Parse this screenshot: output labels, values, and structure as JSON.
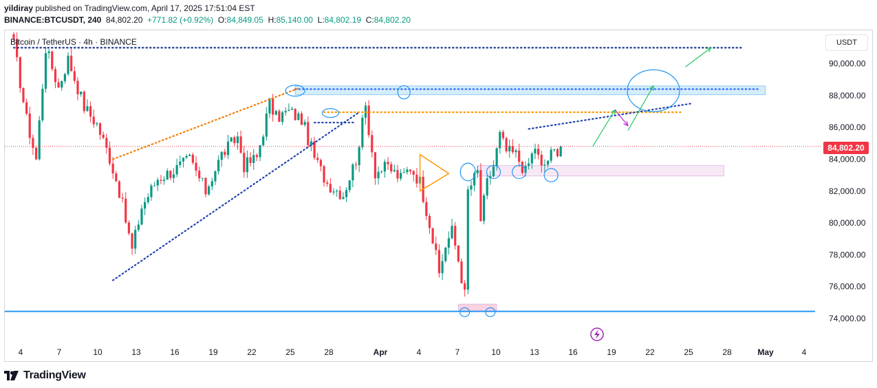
{
  "header": {
    "author": "yildiray",
    "published": "published on TradingView.com, April 17, 2025 17:51:04 EST",
    "symbol": "BINANCE:BTCUSDT, 240",
    "last": "84,802.20",
    "change": "+771.82 (+0.92%)",
    "o_label": "O:",
    "o_value": "84,849.05",
    "h_label": "H:",
    "h_value": "85,140.00",
    "l_label": "L:",
    "l_value": "84,802.19",
    "c_label": "C:",
    "c_value": "84,802.20"
  },
  "legend": "Bitcoin / TetherUS · 4h · BINANCE",
  "unit_button": "USDT",
  "price_label": "84,802.20",
  "footer": {
    "brand": "TradingView"
  },
  "colors": {
    "up": "#089981",
    "down": "#f23645",
    "accent": "#2962ff"
  },
  "chart_data": {
    "type": "candlestick",
    "title": "Bitcoin / TetherUS · 4h · BINANCE",
    "timeframe": "4h",
    "x_ticks": [
      "4",
      "7",
      "10",
      "13",
      "16",
      "19",
      "22",
      "25",
      "28",
      "Apr",
      "4",
      "7",
      "10",
      "13",
      "16",
      "19",
      "22",
      "25",
      "28",
      "May",
      "4"
    ],
    "y_ticks": [
      "74,000.00",
      "76,000.00",
      "78,000.00",
      "80,000.00",
      "82,000.00",
      "84,000.00",
      "86,000.00",
      "88,000.00",
      "90,000.00"
    ],
    "ylim": [
      73000,
      92000
    ],
    "last_price": 84802.2,
    "close_path": [
      {
        "t": 0,
        "p": 91200
      },
      {
        "t": 4,
        "p": 86500
      },
      {
        "t": 7,
        "p": 84000
      },
      {
        "t": 10,
        "p": 91000
      },
      {
        "t": 14,
        "p": 88500
      },
      {
        "t": 17,
        "p": 90300
      },
      {
        "t": 22,
        "p": 87300
      },
      {
        "t": 26,
        "p": 86200
      },
      {
        "t": 30,
        "p": 84100
      },
      {
        "t": 33,
        "p": 82000
      },
      {
        "t": 37,
        "p": 78300
      },
      {
        "t": 40,
        "p": 81000
      },
      {
        "t": 45,
        "p": 82800
      },
      {
        "t": 50,
        "p": 83300
      },
      {
        "t": 55,
        "p": 84000
      },
      {
        "t": 60,
        "p": 82000
      },
      {
        "t": 65,
        "p": 84300
      },
      {
        "t": 70,
        "p": 85400
      },
      {
        "t": 72,
        "p": 83600
      },
      {
        "t": 76,
        "p": 84100
      },
      {
        "t": 80,
        "p": 87500
      },
      {
        "t": 82,
        "p": 86600
      },
      {
        "t": 86,
        "p": 87000
      },
      {
        "t": 90,
        "p": 86500
      },
      {
        "t": 94,
        "p": 84100
      },
      {
        "t": 98,
        "p": 82500
      },
      {
        "t": 103,
        "p": 81800
      },
      {
        "t": 107,
        "p": 84000
      },
      {
        "t": 110,
        "p": 87300
      },
      {
        "t": 113,
        "p": 83200
      },
      {
        "t": 117,
        "p": 83500
      },
      {
        "t": 121,
        "p": 82800
      },
      {
        "t": 124,
        "p": 83500
      },
      {
        "t": 127,
        "p": 82600
      },
      {
        "t": 130,
        "p": 80000
      },
      {
        "t": 133,
        "p": 76800
      },
      {
        "t": 135,
        "p": 78600
      },
      {
        "t": 137,
        "p": 79500
      },
      {
        "t": 139,
        "p": 77700
      },
      {
        "t": 141,
        "p": 75500
      },
      {
        "t": 142,
        "p": 82000
      },
      {
        "t": 145,
        "p": 83200
      },
      {
        "t": 146,
        "p": 80200
      },
      {
        "t": 148,
        "p": 82500
      },
      {
        "t": 150,
        "p": 83600
      },
      {
        "t": 152,
        "p": 85500
      },
      {
        "t": 154,
        "p": 84500
      },
      {
        "t": 157,
        "p": 84300
      },
      {
        "t": 160,
        "p": 83200
      },
      {
        "t": 163,
        "p": 84800
      },
      {
        "t": 165,
        "p": 83400
      },
      {
        "t": 168,
        "p": 84300
      },
      {
        "t": 171,
        "p": 84800
      }
    ]
  },
  "drawings": [
    {
      "kind": "h-line",
      "name": "support-line",
      "color": "#2196f3",
      "price": 74450,
      "from_t": -5,
      "to_t": 250
    },
    {
      "kind": "dotted",
      "name": "top-resistance",
      "color": "#1e3a8a",
      "p1": [
        0,
        91000
      ],
      "p2": [
        228,
        91000
      ]
    },
    {
      "kind": "zone",
      "name": "resistance-zone",
      "color": "#bfe3f5",
      "t1": 88,
      "t2": 235,
      "p_low": 88050,
      "p_high": 88600
    },
    {
      "kind": "dotted",
      "name": "resistance-dots",
      "color": "#2962ff",
      "p1": [
        88,
        88400
      ],
      "p2": [
        233,
        88400
      ]
    },
    {
      "kind": "dotted",
      "name": "orange-level",
      "color": "#ff9800",
      "p1": [
        97,
        86950
      ],
      "p2": [
        209,
        86950
      ]
    },
    {
      "kind": "dotted",
      "name": "orange-channel-top",
      "color": "#f57c00",
      "p1": [
        31,
        84000
      ],
      "p2": [
        89,
        88450
      ]
    },
    {
      "kind": "dotted",
      "name": "blue-channel-bottom",
      "color": "#1e40af",
      "p1": [
        31,
        76400
      ],
      "p2": [
        108,
        86950
      ]
    },
    {
      "kind": "dotted",
      "name": "neckline-dots",
      "color": "#1e40af",
      "p1": [
        94,
        86300
      ],
      "p2": [
        107,
        86300
      ]
    },
    {
      "kind": "dotted",
      "name": "upper-trendline",
      "color": "#1e40af",
      "p1": [
        161,
        85900
      ],
      "p2": [
        212,
        87500
      ]
    },
    {
      "kind": "zone",
      "name": "support-zone",
      "color": "#f3dcf0",
      "t1": 145,
      "t2": 222,
      "p_low": 82950,
      "p_high": 83600
    },
    {
      "kind": "zone",
      "name": "bottom-zone",
      "color": "#f8bbd0",
      "t1": 139,
      "t2": 151,
      "p_low": 74450,
      "p_high": 74900
    }
  ]
}
